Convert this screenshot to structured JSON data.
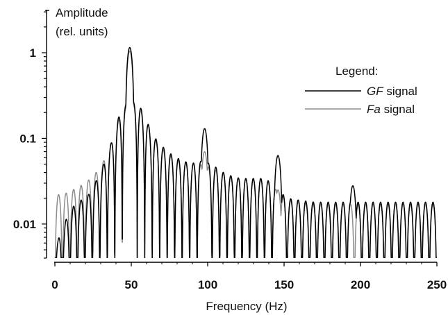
{
  "chart_data": {
    "type": "line",
    "title": "",
    "ylabel_line1": "Amplitude",
    "ylabel_line2": "(rel. units)",
    "xlabel": "Frequency (Hz)",
    "xlim": [
      0,
      250
    ],
    "ylim": [
      0.004,
      3.3
    ],
    "yscale": "log",
    "grid": false,
    "xticks": [
      0,
      50,
      100,
      150,
      200,
      250
    ],
    "xtick_labels": [
      "0",
      "50",
      "100",
      "150",
      "200",
      "250"
    ],
    "yticks": [
      0.01,
      0.1,
      1
    ],
    "ytick_labels": [
      "0.01",
      "0.1",
      "1"
    ],
    "legend": {
      "title": "Legend:",
      "placement": "right",
      "entries": [
        {
          "italic": "GF",
          "rest": " signal",
          "color": "#000000"
        },
        {
          "italic": "Fa",
          "rest": " signal",
          "color": "#8c8c8c"
        }
      ]
    },
    "series": [
      {
        "name": "GF signal",
        "color": "#000000",
        "lobe_spacing_hz": 4.9,
        "floor": 0.004,
        "fundamental_hz": 49,
        "peaks": [
          {
            "x": 49,
            "y": 1.15
          },
          {
            "x": 98,
            "y": 0.13
          },
          {
            "x": 146,
            "y": 0.063
          },
          {
            "x": 195,
            "y": 0.028
          }
        ],
        "sidelobe_envelope": [
          [
            2,
            0.0065
          ],
          [
            7,
            0.011
          ],
          [
            12,
            0.016
          ],
          [
            17,
            0.019
          ],
          [
            22,
            0.022
          ],
          [
            27,
            0.032
          ],
          [
            32,
            0.05
          ],
          [
            37,
            0.09
          ],
          [
            40,
            0.14
          ],
          [
            44,
            0.24
          ],
          [
            54,
            0.27
          ],
          [
            59,
            0.18
          ],
          [
            64,
            0.11
          ],
          [
            69,
            0.085
          ],
          [
            74,
            0.07
          ],
          [
            79,
            0.06
          ],
          [
            84,
            0.055
          ],
          [
            89,
            0.05
          ],
          [
            94,
            0.055
          ],
          [
            103,
            0.05
          ],
          [
            108,
            0.042
          ],
          [
            113,
            0.038
          ],
          [
            118,
            0.035
          ],
          [
            123,
            0.034
          ],
          [
            128,
            0.034
          ],
          [
            133,
            0.034
          ],
          [
            138,
            0.034
          ],
          [
            152,
            0.02
          ],
          [
            160,
            0.019
          ],
          [
            170,
            0.018
          ],
          [
            180,
            0.018
          ],
          [
            190,
            0.018
          ],
          [
            200,
            0.018
          ],
          [
            210,
            0.018
          ],
          [
            220,
            0.018
          ],
          [
            230,
            0.018
          ],
          [
            240,
            0.018
          ],
          [
            248,
            0.018
          ]
        ]
      },
      {
        "name": "Fa signal",
        "color": "#8c8c8c",
        "lobe_spacing_hz": 4.9,
        "floor": 0.004,
        "fundamental_hz": 49,
        "peaks": [
          {
            "x": 49,
            "y": 1.05
          },
          {
            "x": 98,
            "y": 0.07
          },
          {
            "x": 146,
            "y": 0.025
          }
        ],
        "sidelobe_envelope": [
          [
            0,
            0.022
          ],
          [
            5,
            0.022
          ],
          [
            10,
            0.024
          ],
          [
            15,
            0.027
          ],
          [
            20,
            0.03
          ],
          [
            27,
            0.04
          ],
          [
            32,
            0.055
          ],
          [
            37,
            0.09
          ],
          [
            40,
            0.13
          ],
          [
            44,
            0.22
          ],
          [
            54,
            0.25
          ],
          [
            59,
            0.17
          ],
          [
            64,
            0.11
          ],
          [
            69,
            0.08
          ],
          [
            74,
            0.065
          ],
          [
            79,
            0.058
          ],
          [
            84,
            0.052
          ],
          [
            89,
            0.05
          ],
          [
            94,
            0.05
          ],
          [
            103,
            0.045
          ],
          [
            108,
            0.04
          ],
          [
            113,
            0.037
          ],
          [
            118,
            0.035
          ],
          [
            123,
            0.034
          ],
          [
            128,
            0.033
          ],
          [
            133,
            0.033
          ],
          [
            138,
            0.033
          ],
          [
            152,
            0.019
          ],
          [
            160,
            0.018
          ],
          [
            170,
            0.017
          ],
          [
            180,
            0.017
          ],
          [
            190,
            0.017
          ],
          [
            200,
            0.017
          ],
          [
            210,
            0.017
          ],
          [
            220,
            0.017
          ],
          [
            230,
            0.017
          ],
          [
            240,
            0.017
          ],
          [
            248,
            0.017
          ]
        ]
      }
    ]
  }
}
